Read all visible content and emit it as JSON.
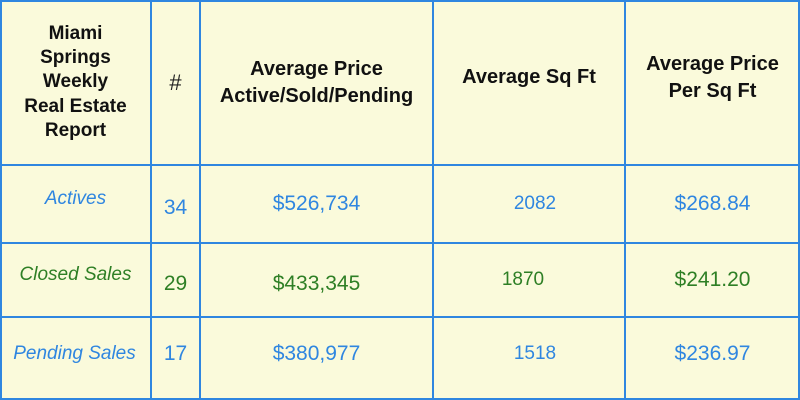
{
  "header": {
    "title": "Miami Springs Weekly Real Estate Report",
    "count": "#",
    "avg_price": "Average Price Active/Sold/Pending",
    "avg_sqft": "Average Sq Ft",
    "avg_price_sqft": "Average Price Per Sq Ft"
  },
  "rows": [
    {
      "label": "Actives",
      "count": "34",
      "avg_price": "$526,734",
      "avg_sqft": "2082",
      "price_sqft": "$268.84"
    },
    {
      "label": "Closed Sales",
      "count": "29",
      "avg_price": "$433,345",
      "avg_sqft": "1870",
      "price_sqft": "$241.20"
    },
    {
      "label": "Pending Sales",
      "count": "17",
      "avg_price": "$380,977",
      "avg_sqft": "1518",
      "price_sqft": "$236.97"
    }
  ],
  "colors": {
    "border": "#2f86e0",
    "background": "#fafadb",
    "actives": "#2f86e0",
    "closed": "#2e7f25",
    "pending": "#2f86e0"
  }
}
